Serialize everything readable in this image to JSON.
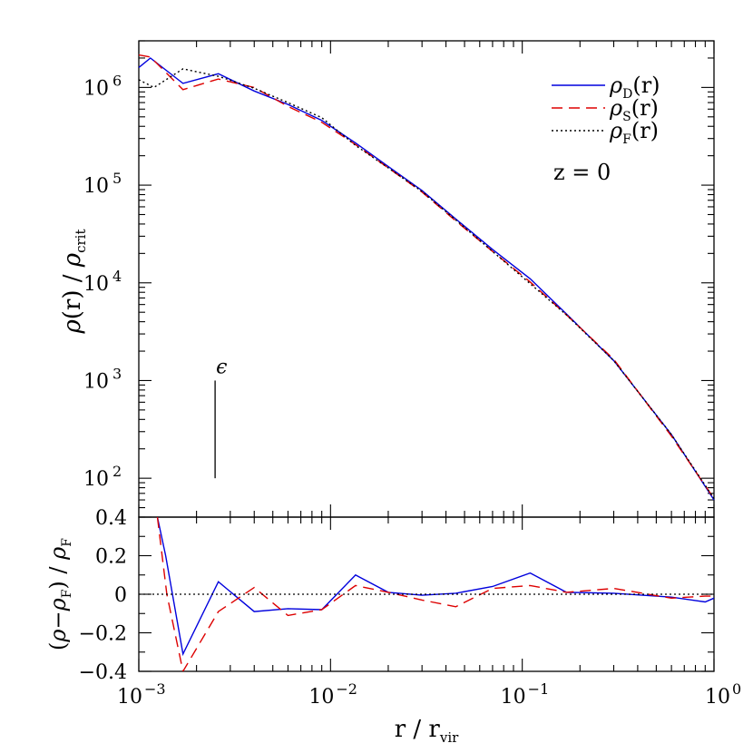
{
  "chart_data": [
    {
      "type": "line",
      "xscale": "log",
      "yscale": "log",
      "xlim": [
        0.001,
        1
      ],
      "ylim": [
        40,
        3000000
      ],
      "ylabel": "ρ(r) / ρ_crit",
      "ytick_labels": [
        {
          "base": "10",
          "exp": "6",
          "value": 1000000
        },
        {
          "base": "10",
          "exp": "5",
          "value": 100000
        },
        {
          "base": "10",
          "exp": "4",
          "value": 10000
        },
        {
          "base": "10",
          "exp": "3",
          "value": 1000
        },
        {
          "base": "10",
          "exp": "2",
          "value": 100
        }
      ],
      "legend": {
        "placement": "top-right",
        "entries": [
          {
            "symbol": "ρ",
            "sub": "D",
            "suffix": "(r)",
            "series": "rho_D"
          },
          {
            "symbol": "ρ",
            "sub": "S",
            "suffix": "(r)",
            "series": "rho_S"
          },
          {
            "symbol": "ρ",
            "sub": "F",
            "suffix": "(r)",
            "series": "rho_F"
          }
        ]
      },
      "annotations": [
        {
          "text": "z = 0",
          "kind": "label"
        },
        {
          "text": "ϵ",
          "kind": "softening-marker",
          "x": 0.0025,
          "y": [
            100,
            1000
          ]
        }
      ],
      "series": [
        {
          "key": "rho_D",
          "color": "#0000dd",
          "style": "solid",
          "x": [
            0.001,
            0.00115,
            0.0017,
            0.0026,
            0.004,
            0.006,
            0.009,
            0.0135,
            0.02,
            0.03,
            0.045,
            0.07,
            0.11,
            0.17,
            0.3,
            0.6,
            1.0
          ],
          "y": [
            1600000,
            2000000,
            1100000,
            1380000,
            920000,
            670000,
            460000,
            270000,
            155000,
            88000,
            45000,
            22000,
            11000,
            4800,
            1600,
            280,
            60
          ]
        },
        {
          "key": "rho_S",
          "color": "#dd0000",
          "style": "dashed",
          "x": [
            0.001,
            0.00115,
            0.0017,
            0.0026,
            0.004,
            0.006,
            0.009,
            0.0135,
            0.02,
            0.03,
            0.045,
            0.07,
            0.11,
            0.17,
            0.3,
            0.6,
            1.0
          ],
          "y": [
            2150000,
            2050000,
            950000,
            1220000,
            1000000,
            640000,
            440000,
            260000,
            150000,
            85000,
            43000,
            21000,
            10200,
            4700,
            1650,
            270,
            62
          ]
        },
        {
          "key": "rho_F",
          "color": "#000000",
          "style": "dotted",
          "x": [
            0.001,
            0.0012,
            0.0017,
            0.0026,
            0.004,
            0.006,
            0.009,
            0.0135,
            0.02,
            0.03,
            0.045,
            0.07,
            0.11,
            0.17,
            0.3,
            0.6,
            1.0
          ],
          "y": [
            1200000,
            1000000,
            1550000,
            1300000,
            980000,
            700000,
            490000,
            255000,
            150000,
            86000,
            44000,
            21000,
            9800,
            4700,
            1600,
            280,
            62
          ]
        }
      ]
    },
    {
      "type": "line",
      "xscale": "log",
      "xlim": [
        0.001,
        1
      ],
      "ylim": [
        -0.4,
        0.4
      ],
      "xlabel": "r / r_vir",
      "ylabel": "(ρ−ρ_F) / ρ_F",
      "ytick_labels": [
        "0.4",
        "0.2",
        "0",
        "−0.2",
        "−0.4"
      ],
      "xtick_labels": [
        {
          "base": "10",
          "exp": "−3",
          "value": 0.001
        },
        {
          "base": "10",
          "exp": "−2",
          "value": 0.01
        },
        {
          "base": "10",
          "exp": "−1",
          "value": 0.1
        },
        {
          "base": "10",
          "exp": "0",
          "value": 1
        }
      ],
      "series": [
        {
          "key": "resid_D",
          "color": "#0000dd",
          "style": "solid",
          "x": [
            0.00125,
            0.00138,
            0.0017,
            0.0026,
            0.004,
            0.006,
            0.009,
            0.0135,
            0.02,
            0.03,
            0.045,
            0.07,
            0.11,
            0.17,
            0.3,
            0.6,
            0.9,
            1.0
          ],
          "y": [
            0.4,
            0.2,
            -0.31,
            0.065,
            -0.09,
            -0.075,
            -0.08,
            0.1,
            0.01,
            -0.005,
            0.005,
            0.04,
            0.11,
            0.01,
            0.005,
            -0.015,
            -0.04,
            -0.02
          ]
        },
        {
          "key": "resid_S",
          "color": "#dd0000",
          "style": "dashed",
          "x": [
            0.00125,
            0.0014,
            0.0017,
            0.0026,
            0.004,
            0.006,
            0.009,
            0.0135,
            0.02,
            0.03,
            0.045,
            0.07,
            0.11,
            0.17,
            0.3,
            0.6,
            0.9,
            1.0
          ],
          "y": [
            0.4,
            0.0,
            -0.4,
            -0.09,
            0.035,
            -0.11,
            -0.08,
            0.045,
            0.01,
            -0.03,
            -0.065,
            0.03,
            0.045,
            0.01,
            0.03,
            -0.02,
            -0.01,
            -0.01
          ]
        },
        {
          "key": "zero_ref",
          "color": "#000000",
          "style": "dotted",
          "x": [
            0.001,
            1.0
          ],
          "y": [
            0,
            0
          ]
        }
      ]
    }
  ]
}
